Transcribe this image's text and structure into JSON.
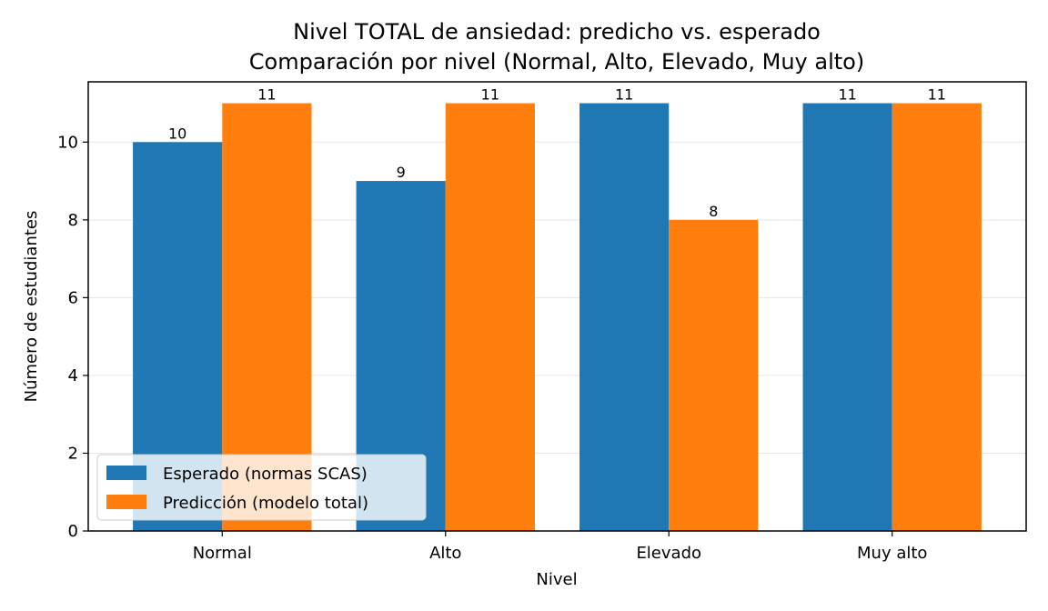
{
  "chart_data": {
    "type": "bar",
    "title": "Nivel TOTAL de ansiedad: predicho vs. esperado",
    "subtitle": "Comparación por nivel (Normal, Alto, Elevado, Muy alto)",
    "xlabel": "Nivel",
    "ylabel": "Número de estudiantes",
    "categories": [
      "Normal",
      "Alto",
      "Elevado",
      "Muy alto"
    ],
    "series": [
      {
        "name": "Esperado (normas SCAS)",
        "values": [
          10,
          9,
          11,
          11
        ],
        "color": "#1f77b4"
      },
      {
        "name": "Predicción (modelo total)",
        "values": [
          11,
          11,
          8,
          11
        ],
        "color": "#ff7f0e"
      }
    ],
    "ylim": [
      0,
      11.55
    ],
    "yticks": [
      0,
      2,
      4,
      6,
      8,
      10
    ],
    "grid": "horizontal",
    "legend_position": "lower-left",
    "data_labels": true
  }
}
